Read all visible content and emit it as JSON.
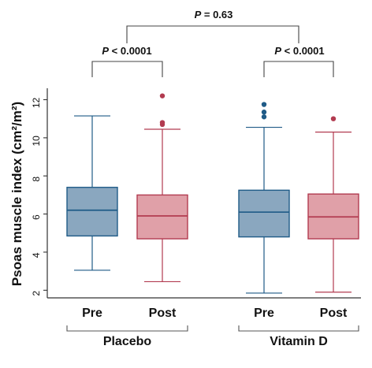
{
  "chart_data": {
    "type": "box",
    "ylabel": "Psoas muscle index (cm²/m²)",
    "yticks": [
      2,
      4,
      6,
      8,
      10,
      12
    ],
    "ylim": [
      1.6,
      12.6
    ],
    "grid": false,
    "groups": [
      {
        "name": "Placebo",
        "boxes": [
          {
            "label": "Pre",
            "color": "#8aa7bf",
            "stroke": "#1f5b87",
            "whisker_low": 3.05,
            "q1": 4.85,
            "median": 6.2,
            "q3": 7.4,
            "whisker_high": 11.15,
            "outliers": []
          },
          {
            "label": "Post",
            "color": "#e0a0a8",
            "stroke": "#b23b50",
            "whisker_low": 2.45,
            "q1": 4.7,
            "median": 5.9,
            "q3": 7.0,
            "whisker_high": 10.45,
            "outliers": [
              10.7,
              10.8,
              12.2
            ]
          }
        ]
      },
      {
        "name": "Vitamin D",
        "boxes": [
          {
            "label": "Pre",
            "color": "#8aa7bf",
            "stroke": "#1f5b87",
            "whisker_low": 1.85,
            "q1": 4.8,
            "median": 6.1,
            "q3": 7.25,
            "whisker_high": 10.55,
            "outliers": [
              11.1,
              11.35,
              11.75
            ]
          },
          {
            "label": "Post",
            "color": "#e0a0a8",
            "stroke": "#b23b50",
            "whisker_low": 1.9,
            "q1": 4.7,
            "median": 5.85,
            "q3": 7.05,
            "whisker_high": 10.3,
            "outliers": [
              11.0
            ]
          }
        ]
      }
    ],
    "annotations": {
      "placebo_p": "P < 0.0001",
      "vitamin_p": "P < 0.0001",
      "between_p": "P = 0.63"
    }
  }
}
